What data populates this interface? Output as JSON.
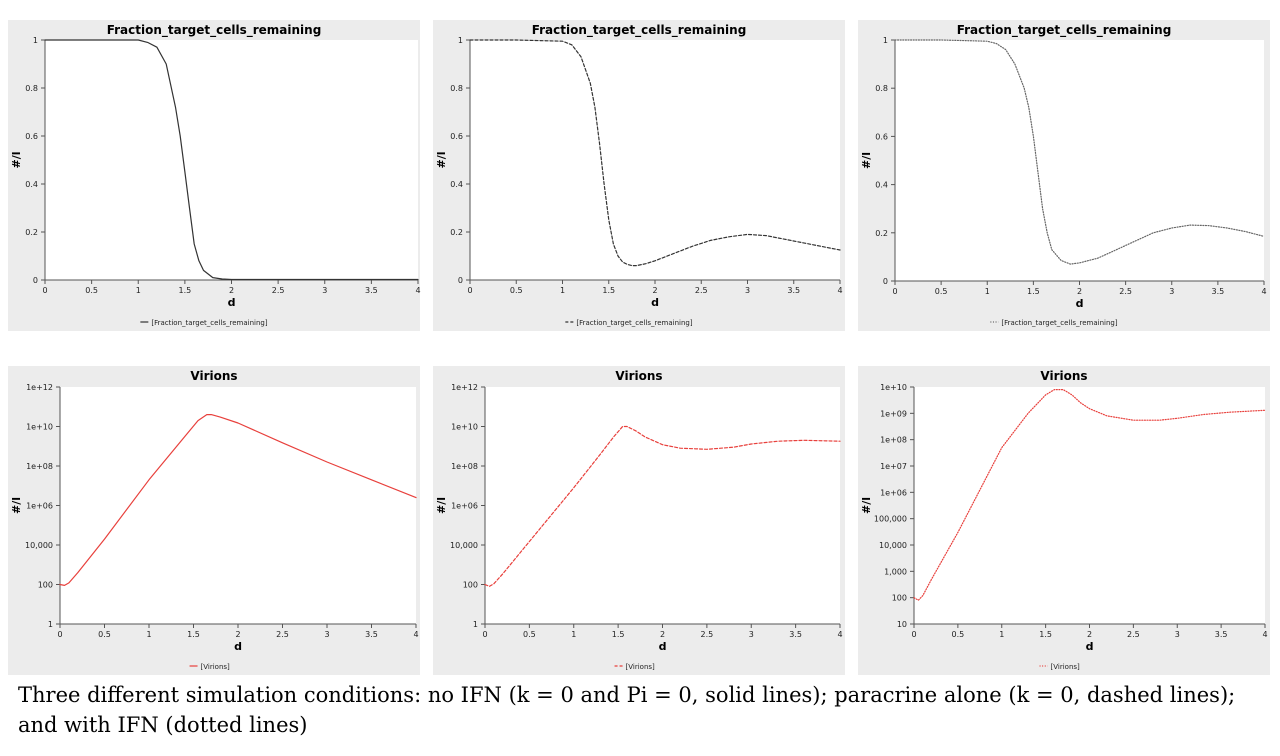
{
  "chart_data": [
    {
      "type": "line",
      "title": "Fraction_target_cells_remaining",
      "xlabel": "d",
      "ylabel": "#/l",
      "xlim": [
        0,
        4
      ],
      "ylim": [
        0,
        1
      ],
      "yscale": "linear",
      "xticks": [
        "0",
        "0.5",
        "1",
        "1.5",
        "2",
        "2.5",
        "3",
        "3.5",
        "4"
      ],
      "yticks": [
        "0",
        "0.2",
        "0.4",
        "0.6",
        "0.8",
        "1"
      ],
      "ytick_values": [
        0,
        0.2,
        0.4,
        0.6,
        0.8,
        1
      ],
      "grid": false,
      "legend_position": "bottom",
      "series": [
        {
          "name": "[Fraction_target_cells_remaining]",
          "color": "#333333",
          "style": "solid",
          "x": [
            0,
            0.5,
            1.0,
            1.1,
            1.2,
            1.3,
            1.4,
            1.45,
            1.5,
            1.55,
            1.6,
            1.65,
            1.7,
            1.8,
            1.9,
            2.0,
            2.5,
            3.0,
            3.5,
            4.0
          ],
          "y": [
            1,
            1,
            1,
            0.99,
            0.97,
            0.9,
            0.72,
            0.6,
            0.45,
            0.3,
            0.15,
            0.08,
            0.04,
            0.01,
            0.004,
            0.002,
            0.002,
            0.002,
            0.002,
            0.002
          ]
        }
      ]
    },
    {
      "type": "line",
      "title": "Fraction_target_cells_remaining",
      "xlabel": "d",
      "ylabel": "#/l",
      "xlim": [
        0,
        4
      ],
      "ylim": [
        0,
        1
      ],
      "yscale": "linear",
      "xticks": [
        "0",
        "0.5",
        "1",
        "1.5",
        "2",
        "2.5",
        "3",
        "3.5",
        "4"
      ],
      "yticks": [
        "0",
        "0.2",
        "0.4",
        "0.6",
        "0.8",
        "1"
      ],
      "ytick_values": [
        0,
        0.2,
        0.4,
        0.6,
        0.8,
        1
      ],
      "grid": false,
      "legend_position": "bottom",
      "series": [
        {
          "name": "[Fraction_target_cells_remaining]",
          "color": "#333333",
          "style": "dashed",
          "x": [
            0,
            0.5,
            1.0,
            1.1,
            1.2,
            1.3,
            1.35,
            1.4,
            1.45,
            1.5,
            1.55,
            1.6,
            1.65,
            1.7,
            1.75,
            1.8,
            1.9,
            2.0,
            2.2,
            2.4,
            2.6,
            2.8,
            3.0,
            3.2,
            3.4,
            3.6,
            3.8,
            4.0
          ],
          "y": [
            1,
            1,
            0.995,
            0.98,
            0.93,
            0.82,
            0.72,
            0.57,
            0.4,
            0.25,
            0.15,
            0.1,
            0.075,
            0.065,
            0.06,
            0.06,
            0.068,
            0.08,
            0.11,
            0.14,
            0.165,
            0.18,
            0.19,
            0.185,
            0.17,
            0.155,
            0.14,
            0.125
          ]
        }
      ]
    },
    {
      "type": "line",
      "title": "Fraction_target_cells_remaining",
      "xlabel": "d",
      "ylabel": "#/l",
      "xlim": [
        0,
        4
      ],
      "ylim": [
        0,
        1
      ],
      "yscale": "linear",
      "xticks": [
        "0",
        "0.5",
        "1",
        "1.5",
        "2",
        "2.5",
        "3",
        "3.5",
        "4"
      ],
      "yticks": [
        "0",
        "0.2",
        "0.4",
        "0.6",
        "0.8",
        "1"
      ],
      "ytick_values": [
        0,
        0.2,
        0.4,
        0.6,
        0.8,
        1
      ],
      "grid": false,
      "legend_position": "bottom",
      "series": [
        {
          "name": "[Fraction_target_cells_remaining]",
          "color": "#666666",
          "style": "dotted",
          "x": [
            0,
            0.5,
            1.0,
            1.1,
            1.2,
            1.3,
            1.4,
            1.45,
            1.5,
            1.55,
            1.6,
            1.65,
            1.7,
            1.8,
            1.9,
            2.0,
            2.2,
            2.4,
            2.6,
            2.8,
            3.0,
            3.2,
            3.4,
            3.6,
            3.8,
            4.0
          ],
          "y": [
            1,
            1,
            0.995,
            0.985,
            0.96,
            0.9,
            0.8,
            0.72,
            0.6,
            0.45,
            0.3,
            0.2,
            0.13,
            0.085,
            0.07,
            0.075,
            0.095,
            0.13,
            0.165,
            0.2,
            0.22,
            0.232,
            0.23,
            0.22,
            0.205,
            0.185
          ]
        }
      ]
    },
    {
      "type": "line",
      "title": "Virions",
      "xlabel": "d",
      "ylabel": "#/l",
      "xlim": [
        0,
        4
      ],
      "ylim": [
        1,
        1000000000000
      ],
      "yscale": "log",
      "xticks": [
        "0",
        "0.5",
        "1",
        "1.5",
        "2",
        "2.5",
        "3",
        "3.5",
        "4"
      ],
      "yticks": [
        "1",
        "100",
        "10,000",
        "1e+06",
        "1e+08",
        "1e+10",
        "1e+12"
      ],
      "ytick_values": [
        1,
        100,
        10000,
        1000000,
        100000000,
        10000000000,
        1000000000000
      ],
      "grid": false,
      "legend_position": "bottom",
      "series": [
        {
          "name": "[Virions]",
          "color": "#e8403c",
          "style": "solid",
          "x": [
            0,
            0.05,
            0.1,
            0.2,
            0.5,
            1.0,
            1.4,
            1.55,
            1.65,
            1.7,
            1.8,
            2.0,
            2.5,
            3.0,
            3.5,
            4.0
          ],
          "y": [
            100,
            90,
            120,
            400,
            20000,
            20000000,
            3000000000,
            20000000000,
            40000000000,
            40000000000,
            30000000000,
            15000000000,
            1500000000,
            160000000,
            20000000,
            2500000
          ]
        }
      ]
    },
    {
      "type": "line",
      "title": "Virions",
      "xlabel": "d",
      "ylabel": "#/l",
      "xlim": [
        0,
        4
      ],
      "ylim": [
        1,
        1000000000000
      ],
      "yscale": "log",
      "xticks": [
        "0",
        "0.5",
        "1",
        "1.5",
        "2",
        "2.5",
        "3",
        "3.5",
        "4"
      ],
      "yticks": [
        "1",
        "100",
        "10,000",
        "1e+06",
        "1e+08",
        "1e+10",
        "1e+12"
      ],
      "ytick_values": [
        1,
        100,
        10000,
        1000000,
        100000000,
        10000000000,
        1000000000000
      ],
      "grid": false,
      "legend_position": "bottom",
      "series": [
        {
          "name": "[Virions]",
          "color": "#e8403c",
          "style": "dashed",
          "x": [
            0,
            0.05,
            0.1,
            0.2,
            0.5,
            1.0,
            1.3,
            1.45,
            1.55,
            1.6,
            1.7,
            1.8,
            2.0,
            2.2,
            2.5,
            2.8,
            3.0,
            3.3,
            3.6,
            4.0
          ],
          "y": [
            100,
            80,
            110,
            350,
            15000,
            8000000,
            400000000,
            3000000000,
            10000000000,
            10000000000,
            6000000000,
            3000000000,
            1200000000,
            800000000,
            700000000,
            900000000,
            1300000000,
            1800000000,
            2000000000,
            1800000000
          ]
        }
      ]
    },
    {
      "type": "line",
      "title": "Virions",
      "xlabel": "d",
      "ylabel": "#/l",
      "xlim": [
        0,
        4
      ],
      "ylim": [
        10,
        10000000000
      ],
      "yscale": "log",
      "xticks": [
        "0",
        "0.5",
        "1",
        "1.5",
        "2",
        "2.5",
        "3",
        "3.5",
        "4"
      ],
      "yticks": [
        "10",
        "100",
        "1,000",
        "10,000",
        "100,000",
        "1e+06",
        "1e+07",
        "1e+08",
        "1e+09",
        "1e+10"
      ],
      "ytick_values": [
        10,
        100,
        1000,
        10000,
        100000,
        1000000,
        10000000,
        100000000,
        1000000000,
        10000000000
      ],
      "grid": false,
      "legend_position": "bottom",
      "series": [
        {
          "name": "[Virions]",
          "color": "#e8403c",
          "style": "dotted",
          "x": [
            0,
            0.05,
            0.1,
            0.2,
            0.5,
            1.0,
            1.3,
            1.5,
            1.6,
            1.7,
            1.8,
            1.9,
            2.0,
            2.2,
            2.5,
            2.8,
            3.0,
            3.3,
            3.6,
            4.0
          ],
          "y": [
            100,
            80,
            120,
            500,
            30000,
            50000000,
            1000000000,
            5000000000,
            8000000000,
            8000000000,
            5000000000,
            2500000000,
            1500000000,
            800000000,
            550000000,
            550000000,
            650000000,
            900000000,
            1100000000,
            1300000000
          ]
        }
      ]
    }
  ],
  "caption": "Three different simulation conditions: no IFN (k = 0 and Pi = 0, solid lines); paracrine alone (k = 0, dashed lines); and with IFN (dotted lines)"
}
